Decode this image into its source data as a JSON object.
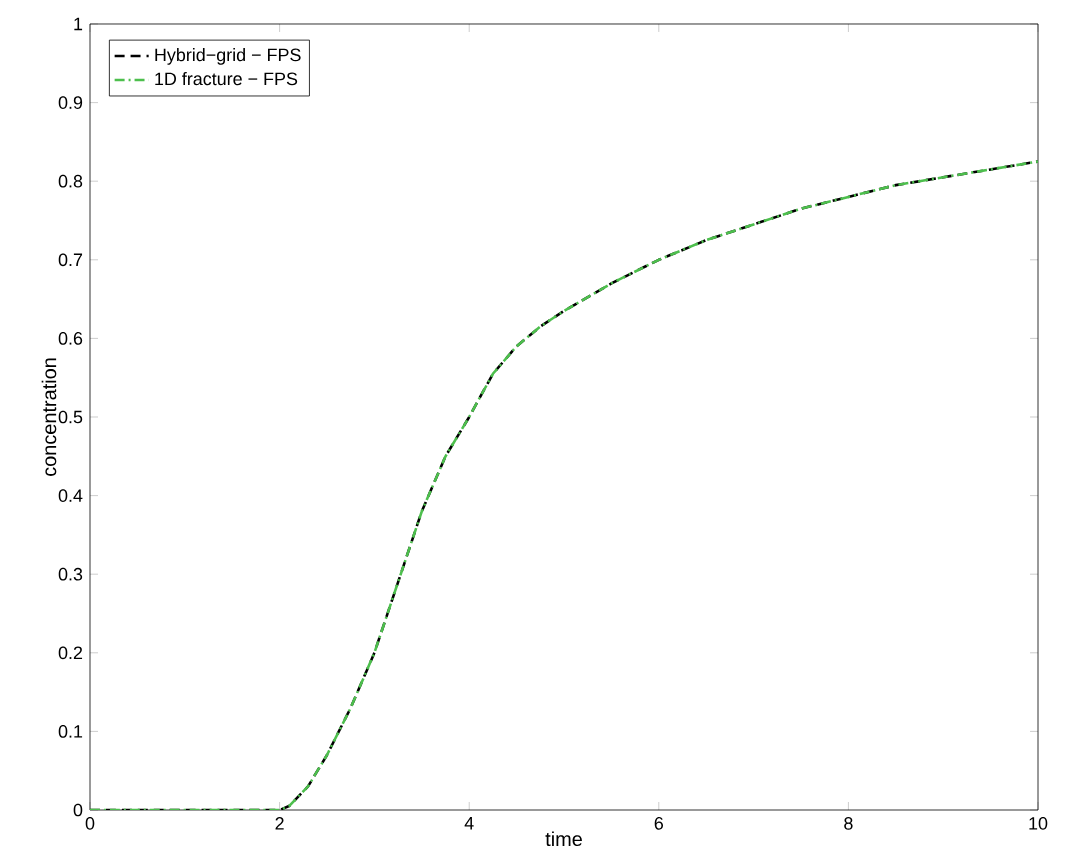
{
  "chart_data": {
    "type": "line",
    "xlabel": "time",
    "ylabel": "concentration",
    "x": [
      0,
      1,
      2,
      2.1,
      2.3,
      2.5,
      2.75,
      3,
      3.25,
      3.5,
      3.75,
      4,
      4.25,
      4.5,
      4.75,
      5,
      5.5,
      6,
      6.5,
      7,
      7.5,
      8,
      8.5,
      9,
      9.5,
      10
    ],
    "series": [
      {
        "name": "Hybrid−grid − FPS",
        "color": "#000000",
        "line_style": "dashed",
        "values": [
          0,
          0,
          0,
          0.005,
          0.03,
          0.07,
          0.13,
          0.2,
          0.29,
          0.38,
          0.45,
          0.5,
          0.555,
          0.59,
          0.615,
          0.635,
          0.67,
          0.7,
          0.725,
          0.745,
          0.765,
          0.78,
          0.795,
          0.805,
          0.815,
          0.825
        ]
      },
      {
        "name": "1D fracture − FPS",
        "color": "#4dbf4d",
        "line_style": "dashdot",
        "values": [
          0,
          0,
          0,
          0.005,
          0.03,
          0.07,
          0.13,
          0.2,
          0.29,
          0.38,
          0.45,
          0.5,
          0.555,
          0.59,
          0.615,
          0.635,
          0.67,
          0.7,
          0.725,
          0.745,
          0.765,
          0.78,
          0.795,
          0.805,
          0.815,
          0.825
        ]
      }
    ],
    "xlim": [
      0,
      10
    ],
    "ylim": [
      0,
      1
    ],
    "xticks": [
      0,
      2,
      4,
      6,
      8,
      10
    ],
    "yticks": [
      0,
      0.1,
      0.2,
      0.3,
      0.4,
      0.5,
      0.6,
      0.7,
      0.8,
      0.9,
      1
    ],
    "legend": "top left",
    "marker": "none",
    "grid": false
  }
}
